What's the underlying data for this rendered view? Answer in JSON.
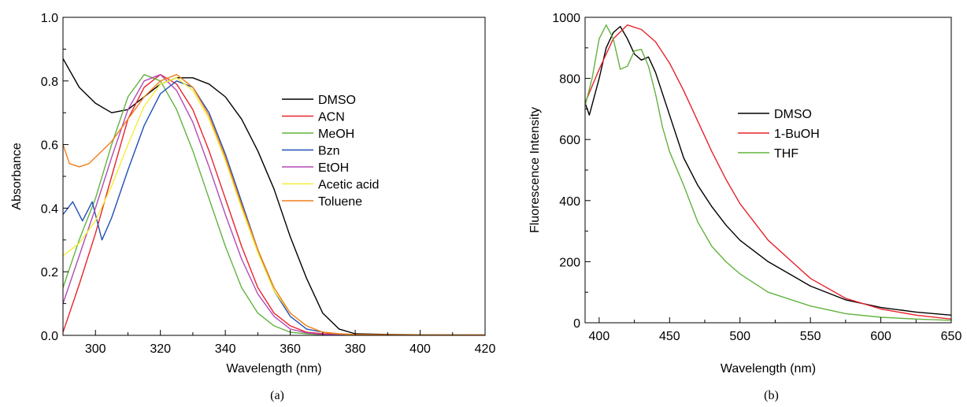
{
  "chart_data": [
    {
      "type": "line",
      "panel_label": "(a)",
      "xlabel": "Wavelength (nm)",
      "ylabel": "Absorbance",
      "xlim": [
        290,
        420
      ],
      "ylim": [
        0.0,
        1.0
      ],
      "xticks": [
        300,
        320,
        340,
        360,
        380,
        400,
        420
      ],
      "xtick_labels": [
        "300",
        "320",
        "340",
        "360",
        "380",
        "400",
        "420"
      ],
      "yticks": [
        0.0,
        0.2,
        0.4,
        0.6,
        0.8,
        1.0
      ],
      "ytick_labels": [
        "0.0",
        "0.2",
        "0.4",
        "0.6",
        "0.8",
        "1.0"
      ],
      "grid": false,
      "legend_position": "right",
      "series": [
        {
          "name": "DMSO",
          "color": "#000000",
          "x": [
            290,
            295,
            300,
            305,
            310,
            315,
            320,
            325,
            330,
            335,
            340,
            345,
            350,
            355,
            360,
            365,
            370,
            375,
            380,
            390,
            400,
            420
          ],
          "y": [
            0.87,
            0.78,
            0.73,
            0.7,
            0.71,
            0.75,
            0.79,
            0.81,
            0.81,
            0.79,
            0.75,
            0.68,
            0.58,
            0.46,
            0.31,
            0.18,
            0.07,
            0.02,
            0.005,
            0.003,
            0.002,
            0.001
          ]
        },
        {
          "name": "ACN",
          "color": "#e8232c",
          "x": [
            290,
            295,
            300,
            305,
            310,
            315,
            320,
            325,
            330,
            335,
            340,
            345,
            350,
            355,
            360,
            365,
            370,
            380,
            400,
            420
          ],
          "y": [
            0.01,
            0.16,
            0.32,
            0.5,
            0.68,
            0.78,
            0.82,
            0.79,
            0.71,
            0.58,
            0.43,
            0.28,
            0.15,
            0.07,
            0.03,
            0.01,
            0.005,
            0.002,
            0.001,
            0.001
          ]
        },
        {
          "name": "MeOH",
          "color": "#62b33e",
          "x": [
            290,
            295,
            300,
            305,
            310,
            315,
            320,
            325,
            330,
            335,
            340,
            345,
            350,
            355,
            360,
            365,
            370,
            380,
            400,
            420
          ],
          "y": [
            0.15,
            0.3,
            0.43,
            0.6,
            0.75,
            0.82,
            0.8,
            0.71,
            0.58,
            0.43,
            0.28,
            0.15,
            0.07,
            0.03,
            0.01,
            0.005,
            0.002,
            0.001,
            0.001,
            0.001
          ]
        },
        {
          "name": "Bzn",
          "color": "#1f4fb5",
          "x": [
            290,
            293,
            296,
            299,
            302,
            305,
            310,
            315,
            320,
            325,
            330,
            335,
            340,
            345,
            350,
            355,
            360,
            365,
            370,
            375,
            380,
            400,
            420
          ],
          "y": [
            0.38,
            0.42,
            0.36,
            0.42,
            0.3,
            0.37,
            0.52,
            0.66,
            0.76,
            0.8,
            0.78,
            0.7,
            0.57,
            0.42,
            0.27,
            0.14,
            0.06,
            0.02,
            0.01,
            0.005,
            0.002,
            0.001,
            0.001
          ]
        },
        {
          "name": "EtOH",
          "color": "#b24ab5",
          "x": [
            290,
            295,
            300,
            305,
            310,
            315,
            320,
            325,
            330,
            335,
            340,
            345,
            350,
            355,
            360,
            365,
            370,
            380,
            400,
            420
          ],
          "y": [
            0.1,
            0.25,
            0.4,
            0.56,
            0.71,
            0.8,
            0.82,
            0.77,
            0.67,
            0.53,
            0.38,
            0.24,
            0.13,
            0.06,
            0.02,
            0.008,
            0.003,
            0.001,
            0.001,
            0.001
          ]
        },
        {
          "name": "Acetic acid",
          "color": "#f2ee3a",
          "x": [
            290,
            295,
            300,
            305,
            310,
            315,
            320,
            325,
            330,
            335,
            340,
            345,
            350,
            355,
            360,
            365,
            370,
            375,
            380,
            400,
            420
          ],
          "y": [
            0.25,
            0.29,
            0.36,
            0.47,
            0.6,
            0.72,
            0.79,
            0.81,
            0.77,
            0.68,
            0.55,
            0.4,
            0.26,
            0.14,
            0.07,
            0.03,
            0.01,
            0.005,
            0.002,
            0.001,
            0.001
          ]
        },
        {
          "name": "Toluene",
          "color": "#f07f1e",
          "x": [
            290,
            292,
            295,
            298,
            300,
            305,
            310,
            315,
            320,
            325,
            330,
            335,
            340,
            345,
            350,
            355,
            360,
            365,
            370,
            375,
            380,
            390,
            400,
            420
          ],
          "y": [
            0.6,
            0.54,
            0.53,
            0.54,
            0.56,
            0.61,
            0.68,
            0.75,
            0.8,
            0.82,
            0.78,
            0.69,
            0.56,
            0.41,
            0.27,
            0.15,
            0.07,
            0.03,
            0.01,
            0.005,
            0.003,
            0.002,
            0.001,
            0.001
          ]
        }
      ]
    },
    {
      "type": "line",
      "panel_label": "(b)",
      "xlabel": "Wavelength (nm)",
      "ylabel": "Fluorescence Intensity",
      "xlim": [
        390,
        650
      ],
      "ylim": [
        0,
        1000
      ],
      "xticks": [
        400,
        450,
        500,
        550,
        600,
        650
      ],
      "xtick_labels": [
        "400",
        "450",
        "500",
        "550",
        "600",
        "650"
      ],
      "yticks": [
        0,
        200,
        400,
        600,
        800,
        1000
      ],
      "ytick_labels": [
        "0",
        "200",
        "400",
        "600",
        "800",
        "1000"
      ],
      "grid": false,
      "legend_position": "right",
      "series": [
        {
          "name": "DMSO",
          "color": "#000000",
          "x": [
            390,
            393,
            400,
            405,
            410,
            415,
            420,
            425,
            430,
            435,
            440,
            450,
            460,
            470,
            480,
            490,
            500,
            520,
            550,
            575,
            600,
            625,
            650
          ],
          "y": [
            720,
            680,
            800,
            900,
            950,
            970,
            930,
            880,
            860,
            870,
            820,
            680,
            540,
            450,
            380,
            320,
            270,
            200,
            120,
            75,
            50,
            35,
            25
          ]
        },
        {
          "name": "1-BuOH",
          "color": "#e8232c",
          "x": [
            390,
            400,
            410,
            420,
            430,
            440,
            450,
            460,
            470,
            480,
            490,
            500,
            520,
            550,
            575,
            600,
            625,
            650
          ],
          "y": [
            720,
            830,
            930,
            975,
            960,
            920,
            850,
            760,
            660,
            560,
            470,
            390,
            270,
            145,
            80,
            45,
            25,
            12
          ]
        },
        {
          "name": "THF",
          "color": "#62b33e",
          "x": [
            390,
            395,
            400,
            405,
            410,
            415,
            420,
            425,
            430,
            435,
            440,
            445,
            450,
            460,
            470,
            480,
            490,
            500,
            520,
            550,
            575,
            600,
            625,
            650
          ],
          "y": [
            710,
            800,
            930,
            975,
            930,
            830,
            840,
            890,
            895,
            840,
            750,
            640,
            560,
            450,
            330,
            250,
            200,
            160,
            100,
            55,
            30,
            18,
            12,
            8
          ]
        }
      ]
    }
  ]
}
